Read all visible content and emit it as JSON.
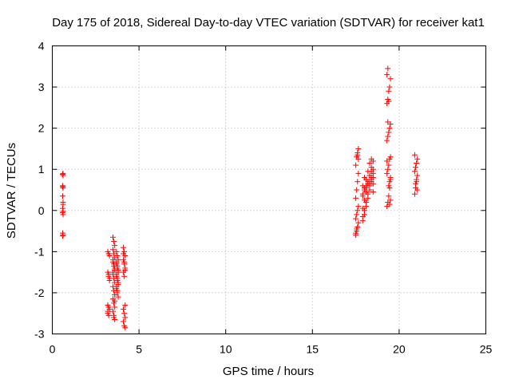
{
  "chart_data": {
    "type": "scatter",
    "title": "Day 175 of 2018, Sidereal Day-to-day VTEC variation (SDTVAR) for receiver kat1",
    "xlabel": "GPS time / hours",
    "ylabel": "SDTVAR / TECUs",
    "xlim": [
      0,
      25
    ],
    "ylim": [
      -3,
      4
    ],
    "x_ticks": [
      0,
      5,
      10,
      15,
      20,
      25
    ],
    "y_ticks": [
      -3,
      -2,
      -1,
      0,
      1,
      2,
      3,
      4
    ],
    "x_tick_labels": [
      "0",
      "5",
      "10",
      "15",
      "20",
      "25"
    ],
    "y_tick_labels": [
      "-3",
      "-2",
      "-1",
      "0",
      "1",
      "2",
      "3",
      "4"
    ],
    "grid": true,
    "marker": "+",
    "series_color": "#ff0000",
    "series": [
      {
        "name": "SDTVAR",
        "x": [
          0.6,
          0.62,
          0.6,
          0.62,
          0.6,
          0.62,
          0.6,
          0.62,
          0.6,
          0.62,
          0.6,
          0.62,
          0.6,
          0.62,
          0.6,
          0.62,
          3.2,
          3.25,
          3.3,
          3.2,
          3.25,
          3.3,
          3.2,
          3.25,
          3.3,
          3.2,
          3.25,
          3.3,
          3.2,
          3.25,
          3.5,
          3.55,
          3.6,
          3.5,
          3.55,
          3.6,
          3.5,
          3.55,
          3.6,
          3.5,
          3.55,
          3.6,
          3.5,
          3.55,
          3.6,
          3.5,
          3.55,
          3.6,
          3.5,
          3.55,
          3.6,
          3.5,
          3.55,
          3.6,
          3.5,
          3.55,
          3.6,
          3.7,
          3.75,
          3.8,
          3.7,
          3.75,
          3.8,
          3.7,
          3.75,
          3.8,
          3.7,
          3.75,
          3.8,
          3.7,
          3.75,
          3.8,
          3.7,
          3.75,
          3.8,
          3.7,
          3.75,
          4.1,
          4.15,
          4.2,
          4.1,
          4.15,
          4.2,
          4.1,
          4.15,
          4.2,
          4.1,
          4.15,
          4.2,
          4.1,
          4.15,
          4.2,
          4.1,
          4.15,
          4.2,
          17.5,
          17.55,
          17.6,
          17.65,
          17.5,
          17.55,
          17.6,
          17.65,
          17.5,
          17.55,
          17.6,
          17.65,
          17.5,
          17.55,
          17.6,
          17.65,
          17.5,
          17.55,
          17.6,
          17.65,
          17.9,
          18.0,
          18.1,
          18.2,
          18.3,
          18.4,
          18.5,
          17.9,
          18.0,
          18.1,
          18.2,
          18.3,
          18.4,
          18.5,
          17.9,
          18.0,
          18.1,
          18.2,
          18.3,
          18.4,
          18.5,
          17.9,
          18.0,
          18.1,
          18.2,
          18.3,
          18.4,
          18.5,
          17.9,
          18.0,
          18.1,
          18.2,
          18.3,
          18.4,
          18.5,
          17.9,
          18.0,
          18.1,
          18.2,
          18.3,
          18.4,
          18.5,
          19.3,
          19.35,
          19.4,
          19.45,
          19.5,
          19.3,
          19.35,
          19.4,
          19.45,
          19.5,
          19.3,
          19.35,
          19.4,
          19.45,
          19.5,
          19.3,
          19.35,
          19.4,
          19.45,
          19.5,
          19.3,
          19.35,
          19.4,
          19.45,
          19.5,
          19.3,
          19.35,
          19.4,
          19.45,
          19.5,
          20.9,
          20.95,
          21.0,
          21.05,
          20.9,
          20.95,
          21.0,
          21.05,
          20.9,
          20.95,
          21.0,
          21.05
        ],
        "y": [
          0.88,
          0.85,
          0.6,
          0.55,
          0.35,
          0.2,
          0.05,
          -0.02,
          -0.05,
          -0.1,
          -0.55,
          -0.6,
          0.58,
          0.9,
          -0.62,
          0.15,
          -1.0,
          -1.05,
          -1.1,
          -1.5,
          -1.6,
          -1.7,
          -2.3,
          -2.35,
          -2.4,
          -2.5,
          -1.55,
          -1.65,
          -2.45,
          -2.55,
          -0.65,
          -0.75,
          -0.85,
          -0.95,
          -1.05,
          -1.15,
          -1.25,
          -1.35,
          -1.45,
          -1.55,
          -1.65,
          -1.75,
          -1.85,
          -1.95,
          -2.05,
          -2.15,
          -2.25,
          -2.35,
          -2.45,
          -2.55,
          -2.65,
          -1.2,
          -1.3,
          -1.4,
          -1.5,
          -2.6,
          -2.2,
          -1.0,
          -1.1,
          -1.2,
          -1.3,
          -1.4,
          -1.5,
          -1.6,
          -1.7,
          -1.8,
          -1.9,
          -2.0,
          -2.1,
          -1.25,
          -1.35,
          -1.45,
          -1.55,
          -1.65,
          -1.75,
          -1.85,
          -1.95,
          -0.9,
          -1.0,
          -1.1,
          -1.2,
          -1.3,
          -1.4,
          -1.5,
          -1.6,
          -2.3,
          -2.4,
          -2.5,
          -2.6,
          -2.7,
          -2.8,
          -2.85,
          -1.05,
          -1.25,
          -1.45,
          -0.6,
          -0.5,
          -0.4,
          -0.3,
          -0.2,
          -0.1,
          0.0,
          0.1,
          0.3,
          0.5,
          0.7,
          0.9,
          1.1,
          1.3,
          1.4,
          1.5,
          -0.55,
          -0.45,
          1.35,
          1.25,
          -0.25,
          -0.1,
          0.1,
          0.3,
          0.5,
          0.7,
          0.9,
          -0.15,
          0.0,
          0.2,
          0.4,
          0.6,
          0.8,
          1.0,
          0.05,
          0.25,
          0.45,
          0.65,
          0.85,
          1.05,
          1.2,
          0.35,
          0.55,
          0.75,
          0.95,
          1.15,
          1.25,
          0.45,
          0.6,
          0.8,
          0.55,
          0.65,
          0.7,
          0.75,
          0.8,
          0.4,
          0.5,
          0.6,
          0.7,
          0.85,
          0.95,
          0.65,
          0.1,
          0.2,
          0.35,
          0.55,
          0.75,
          0.9,
          1.0,
          1.1,
          1.25,
          1.3,
          1.7,
          1.8,
          1.9,
          2.0,
          2.1,
          2.6,
          2.7,
          2.9,
          3.0,
          3.2,
          3.3,
          3.45,
          0.6,
          0.7,
          0.8,
          1.2,
          2.15,
          2.65,
          0.15,
          0.25,
          0.4,
          0.55,
          0.7,
          0.85,
          0.95,
          1.05,
          1.15,
          1.25,
          1.35,
          0.65,
          0.75,
          0.5
        ]
      }
    ]
  }
}
